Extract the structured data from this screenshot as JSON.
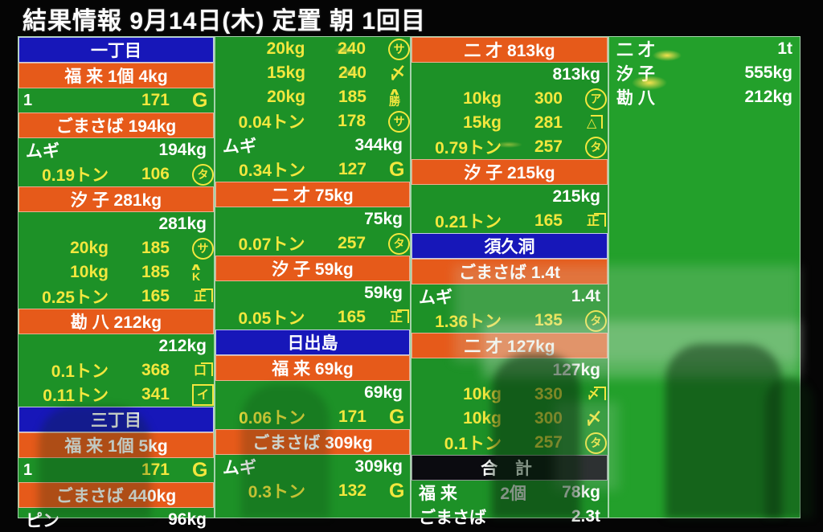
{
  "header": {
    "title": "結果情報  9月14日(木)  定置  朝  1回目"
  },
  "glyphs": {
    "roof": "∧"
  },
  "columns": [
    {
      "rows": [
        {
          "t": "blue",
          "text": "一丁目"
        },
        {
          "t": "orange",
          "text": "福  来 1個 4kg"
        },
        {
          "t": "bid",
          "left": "1",
          "qty": "",
          "price": "171",
          "mark": {
            "k": "G",
            "c": "G"
          }
        },
        {
          "t": "orange",
          "text": "ごまさば 194kg"
        },
        {
          "t": "sub",
          "left": "ムギ",
          "right": "194kg"
        },
        {
          "t": "bid",
          "qty": "0.19トン",
          "price": "106",
          "mark": {
            "k": "circle",
            "c": "タ"
          }
        },
        {
          "t": "orange",
          "text": "汐 子 281kg"
        },
        {
          "t": "sub",
          "left": "",
          "right": "281kg"
        },
        {
          "t": "bid",
          "qty": "20kg",
          "price": "185",
          "mark": {
            "k": "circle",
            "c": "サ"
          }
        },
        {
          "t": "bid",
          "qty": "10kg",
          "price": "185",
          "mark": {
            "k": "yane",
            "c": "K"
          }
        },
        {
          "t": "bid",
          "qty": "0.25トン",
          "price": "165",
          "mark": {
            "k": "kane",
            "c": "正"
          }
        },
        {
          "t": "orange",
          "text": "勘  八 212kg"
        },
        {
          "t": "sub",
          "left": "",
          "right": "212kg"
        },
        {
          "t": "bid",
          "qty": "0.1トン",
          "price": "368",
          "mark": {
            "k": "kane",
            "c": "口"
          }
        },
        {
          "t": "bid",
          "qty": "0.11トン",
          "price": "341",
          "mark": {
            "k": "box",
            "c": "イ"
          }
        },
        {
          "t": "blue",
          "text": "三丁目"
        },
        {
          "t": "orange",
          "text": "福  来 1個 5kg"
        },
        {
          "t": "bid",
          "left": "1",
          "qty": "",
          "price": "171",
          "mark": {
            "k": "G",
            "c": "G"
          }
        },
        {
          "t": "orange",
          "text": "ごまさば 440kg"
        },
        {
          "t": "sub",
          "left": "ピン",
          "right": "96kg"
        }
      ]
    },
    {
      "rows": [
        {
          "t": "bid",
          "qty": "20kg",
          "price": "240",
          "mark": {
            "k": "circle",
            "c": "サ"
          }
        },
        {
          "t": "bid",
          "qty": "15kg",
          "price": "240",
          "mark": {
            "k": "plain",
            "c": "〆"
          }
        },
        {
          "t": "bid",
          "qty": "20kg",
          "price": "185",
          "mark": {
            "k": "yane",
            "c": "勝"
          }
        },
        {
          "t": "bid",
          "qty": "0.04トン",
          "price": "178",
          "mark": {
            "k": "circle",
            "c": "サ"
          }
        },
        {
          "t": "sub",
          "left": "ムギ",
          "right": "344kg"
        },
        {
          "t": "bid",
          "qty": "0.34トン",
          "price": "127",
          "mark": {
            "k": "G",
            "c": "G"
          }
        },
        {
          "t": "orange",
          "text": "二  才 75kg"
        },
        {
          "t": "sub",
          "left": "",
          "right": "75kg"
        },
        {
          "t": "bid",
          "qty": "0.07トン",
          "price": "257",
          "mark": {
            "k": "circle",
            "c": "タ"
          }
        },
        {
          "t": "orange",
          "text": "汐  子 59kg"
        },
        {
          "t": "sub",
          "left": "",
          "right": "59kg"
        },
        {
          "t": "bid",
          "qty": "0.05トン",
          "price": "165",
          "mark": {
            "k": "kane",
            "c": "正"
          }
        },
        {
          "t": "blue",
          "text": "日出島"
        },
        {
          "t": "orange",
          "text": "福  来 69kg"
        },
        {
          "t": "sub",
          "left": "",
          "right": "69kg"
        },
        {
          "t": "bid",
          "qty": "0.06トン",
          "price": "171",
          "mark": {
            "k": "G",
            "c": "G"
          }
        },
        {
          "t": "orange",
          "text": "ごまさば 309kg"
        },
        {
          "t": "sub",
          "left": "ムギ",
          "right": "309kg"
        },
        {
          "t": "bid",
          "qty": "0.3トン",
          "price": "132",
          "mark": {
            "k": "G",
            "c": "G"
          }
        },
        {
          "t": "empty"
        }
      ]
    },
    {
      "rows": [
        {
          "t": "orange",
          "text": "二  才 813kg"
        },
        {
          "t": "sub",
          "left": "",
          "right": "813kg"
        },
        {
          "t": "bid",
          "qty": "10kg",
          "price": "300",
          "mark": {
            "k": "circle",
            "c": "ア"
          }
        },
        {
          "t": "bid",
          "qty": "15kg",
          "price": "281",
          "mark": {
            "k": "kane",
            "c": "△"
          }
        },
        {
          "t": "bid",
          "qty": "0.79トン",
          "price": "257",
          "mark": {
            "k": "circle",
            "c": "タ"
          }
        },
        {
          "t": "orange",
          "text": "汐  子 215kg"
        },
        {
          "t": "sub",
          "left": "",
          "right": "215kg"
        },
        {
          "t": "bid",
          "qty": "0.21トン",
          "price": "165",
          "mark": {
            "k": "kane",
            "c": "正"
          }
        },
        {
          "t": "blue",
          "text": "須久洞"
        },
        {
          "t": "orange",
          "text": "ごまさば 1.4t"
        },
        {
          "t": "sub",
          "left": "ムギ",
          "right": "1.4t"
        },
        {
          "t": "bid",
          "qty": "1.36トン",
          "price": "135",
          "mark": {
            "k": "circle",
            "c": "タ"
          }
        },
        {
          "t": "orange",
          "text": "二  才 127kg"
        },
        {
          "t": "sub",
          "left": "",
          "right": "127kg"
        },
        {
          "t": "bid",
          "qty": "10kg",
          "price": "330",
          "mark": {
            "k": "kane",
            "c": "〆"
          }
        },
        {
          "t": "bid",
          "qty": "10kg",
          "price": "300",
          "mark": {
            "k": "plain",
            "c": "〆"
          }
        },
        {
          "t": "bid",
          "qty": "0.1トン",
          "price": "257",
          "mark": {
            "k": "circle",
            "c": "タ"
          }
        },
        {
          "t": "black",
          "text": "合 計"
        },
        {
          "t": "total",
          "label": "福  来",
          "mid": "2個",
          "right": "78kg"
        },
        {
          "t": "total",
          "label": "ごまさば",
          "mid": "",
          "right": "2.3t"
        }
      ]
    },
    {
      "rows": [
        {
          "t": "sub4",
          "left": "二  才",
          "right": "1t"
        },
        {
          "t": "sub4",
          "left": "汐  子",
          "right": "555kg"
        },
        {
          "t": "sub4",
          "left": "勘  八",
          "right": "212kg"
        }
      ]
    }
  ]
}
